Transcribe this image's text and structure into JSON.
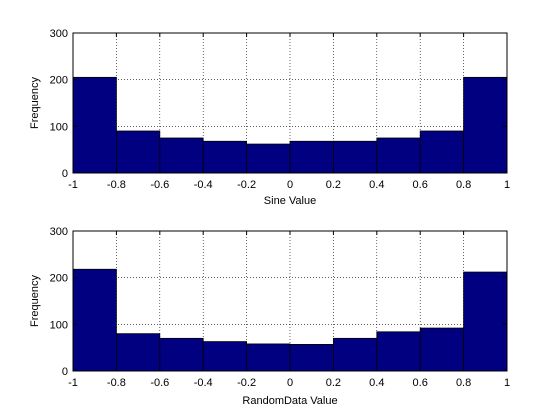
{
  "chart_data": [
    {
      "type": "bar",
      "xlabel": "Sine Value",
      "ylabel": "Frequency",
      "xlim": [
        -1,
        1
      ],
      "ylim": [
        0,
        300
      ],
      "grid": true,
      "x_ticks": [
        "-1",
        "-0.8",
        "-0.6",
        "-0.4",
        "-0.2",
        "0",
        "0.2",
        "0.4",
        "0.6",
        "0.8",
        "1"
      ],
      "y_ticks": [
        "0",
        "100",
        "200",
        "300"
      ],
      "bin_edges": [
        -1,
        -0.8,
        -0.6,
        -0.4,
        -0.2,
        0,
        0.2,
        0.4,
        0.6,
        0.8,
        1
      ],
      "values": [
        205,
        90,
        75,
        68,
        62,
        68,
        68,
        75,
        90,
        205
      ],
      "bar_color": "#000080"
    },
    {
      "type": "bar",
      "xlabel": "RandomData Value",
      "ylabel": "Frequency",
      "xlim": [
        -1,
        1
      ],
      "ylim": [
        0,
        300
      ],
      "grid": true,
      "x_ticks": [
        "-1",
        "-0.8",
        "-0.6",
        "-0.4",
        "-0.2",
        "0",
        "0.2",
        "0.4",
        "0.6",
        "0.8",
        "1"
      ],
      "y_ticks": [
        "0",
        "100",
        "200",
        "300"
      ],
      "bin_edges": [
        -1,
        -0.8,
        -0.6,
        -0.4,
        -0.2,
        0,
        0.2,
        0.4,
        0.6,
        0.8,
        1
      ],
      "values": [
        218,
        80,
        70,
        63,
        58,
        57,
        70,
        84,
        92,
        212
      ],
      "bar_color": "#000080"
    }
  ]
}
